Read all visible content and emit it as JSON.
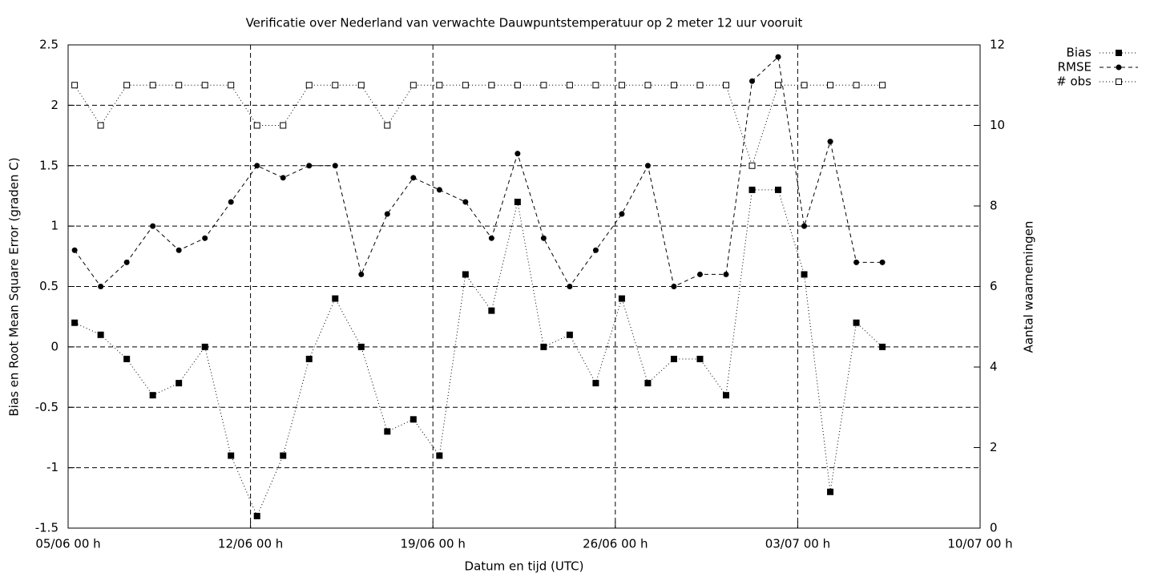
{
  "chart_data": {
    "type": "line",
    "title": "Verificatie over Nederland van verwachte Dauwpuntstemperatuur op 2 meter 12 uur vooruit",
    "xlabel": "Datum en tijd (UTC)",
    "ylabel": "Bias en Root Mean Square Error (graden C)",
    "y2label": "Aantal waarnemingen",
    "x": [
      0.25,
      1.25,
      2.25,
      3.25,
      4.25,
      5.25,
      6.25,
      7.25,
      8.25,
      9.25,
      10.25,
      11.25,
      12.25,
      13.25,
      14.25,
      15.25,
      16.25,
      17.25,
      18.25,
      19.25,
      20.25,
      21.25,
      22.25,
      23.25,
      24.25,
      25.25,
      26.25,
      27.25,
      28.25,
      29.25,
      30.25,
      31.25
    ],
    "xlim": [
      0,
      35
    ],
    "xticks": [
      {
        "value": 0,
        "label": "05/06 00 h"
      },
      {
        "value": 7,
        "label": "12/06 00 h"
      },
      {
        "value": 14,
        "label": "19/06 00 h"
      },
      {
        "value": 21,
        "label": "26/06 00 h"
      },
      {
        "value": 28,
        "label": "03/07 00 h"
      },
      {
        "value": 35,
        "label": "10/07 00 h"
      }
    ],
    "ylim": [
      -1.5,
      2.5
    ],
    "yticks": [
      -1.5,
      -1,
      -0.5,
      0,
      0.5,
      1,
      1.5,
      2,
      2.5
    ],
    "y2lim": [
      0,
      12
    ],
    "y2ticks": [
      0,
      2,
      4,
      6,
      8,
      10,
      12
    ],
    "grid": true,
    "series": [
      {
        "name": "Bias",
        "color": "#000000",
        "marker": "square",
        "dash": "1,3",
        "values": [
          0.2,
          0.1,
          -0.1,
          -0.4,
          -0.3,
          0,
          -0.9,
          -1.4,
          -0.9,
          -0.1,
          0.4,
          0,
          -0.7,
          -0.6,
          -0.9,
          0.6,
          0.3,
          1.2,
          0,
          0.1,
          -0.3,
          0.4,
          -0.3,
          -0.1,
          -0.1,
          -0.4,
          1.3,
          1.3,
          0.6,
          -1.2,
          0.2,
          0
        ]
      },
      {
        "name": "RMSE",
        "color": "#000000",
        "marker": "circle",
        "dash": "5,4",
        "values": [
          0.8,
          0.5,
          0.7,
          1.0,
          0.8,
          0.9,
          1.2,
          1.5,
          1.4,
          1.5,
          1.5,
          0.6,
          1.1,
          1.4,
          1.3,
          1.2,
          0.9,
          1.6,
          0.9,
          0.5,
          0.8,
          1.1,
          1.5,
          0.5,
          0.6,
          0.6,
          2.2,
          2.4,
          1.0,
          1.7,
          0.7,
          0.7
        ]
      },
      {
        "name": "# obs",
        "color": "#000000",
        "marker": "open-square",
        "dash": "1,3",
        "axis": "y2",
        "values": [
          11,
          10,
          11,
          11,
          11,
          11,
          11,
          10,
          10,
          11,
          11,
          11,
          10,
          11,
          11,
          11,
          11,
          11,
          11,
          11,
          11,
          11,
          11,
          11,
          11,
          11,
          9,
          11,
          11,
          11,
          11,
          11
        ]
      }
    ]
  }
}
